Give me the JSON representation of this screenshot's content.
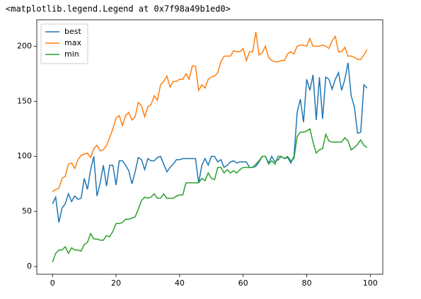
{
  "output_text": "<matplotlib.legend.Legend at 0x7f98a49b1ed0>",
  "chart_data": {
    "type": "line",
    "x": [
      0,
      1,
      2,
      3,
      4,
      5,
      6,
      7,
      8,
      9,
      10,
      11,
      12,
      13,
      14,
      15,
      16,
      17,
      18,
      19,
      20,
      21,
      22,
      23,
      24,
      25,
      26,
      27,
      28,
      29,
      30,
      31,
      32,
      33,
      34,
      35,
      36,
      37,
      38,
      39,
      40,
      41,
      42,
      43,
      44,
      45,
      46,
      47,
      48,
      49,
      50,
      51,
      52,
      53,
      54,
      55,
      56,
      57,
      58,
      59,
      60,
      61,
      62,
      63,
      64,
      65,
      66,
      67,
      68,
      69,
      70,
      71,
      72,
      73,
      74,
      75,
      76,
      77,
      78,
      79,
      80,
      81,
      82,
      83,
      84,
      85,
      86,
      87,
      88,
      89,
      90,
      91,
      92,
      93,
      94,
      95,
      96,
      97,
      98,
      99
    ],
    "series": [
      {
        "name": "best",
        "color": "#1f77b4",
        "values": [
          57,
          63,
          40,
          53,
          57,
          66,
          59,
          64,
          61,
          62,
          80,
          70,
          88,
          100,
          64,
          76,
          92,
          73,
          92,
          92,
          74,
          96,
          96,
          92,
          87,
          75,
          86,
          99,
          97,
          88,
          98,
          96,
          96,
          99,
          100,
          93,
          86,
          90,
          93,
          97,
          97,
          98,
          98,
          98,
          98,
          98,
          76,
          92,
          98,
          92,
          100,
          100,
          95,
          97,
          90,
          92,
          95,
          96,
          94,
          95,
          95,
          95,
          90,
          90,
          91,
          95,
          100,
          100,
          94,
          100,
          95,
          97,
          100,
          98,
          99,
          94,
          100,
          140,
          152,
          131,
          170,
          160,
          174,
          133,
          172,
          134,
          172,
          170,
          161,
          170,
          176,
          160,
          170,
          185,
          155,
          145,
          121,
          122,
          165,
          162
        ]
      },
      {
        "name": "max",
        "color": "#ff7f0e",
        "values": [
          68,
          70,
          71,
          80,
          82,
          93,
          94,
          89,
          97,
          101,
          102,
          103,
          99,
          107,
          110,
          105,
          106,
          110,
          117,
          125,
          135,
          137,
          128,
          137,
          140,
          133,
          136,
          149,
          146,
          136,
          145,
          147,
          155,
          151,
          165,
          168,
          173,
          163,
          168,
          168,
          170,
          170,
          175,
          170,
          182,
          182,
          160,
          165,
          162,
          170,
          172,
          173,
          176,
          186,
          191,
          191,
          191,
          196,
          195,
          195,
          198,
          187,
          195,
          195,
          213,
          192,
          194,
          200,
          190,
          187,
          186,
          186,
          187,
          187,
          193,
          195,
          193,
          200,
          201,
          201,
          200,
          207,
          200,
          200,
          200,
          201,
          200,
          198,
          205,
          209,
          195,
          195,
          199,
          191,
          191,
          190,
          188,
          188,
          192,
          197
        ]
      },
      {
        "name": "min",
        "color": "#2ca02c",
        "values": [
          4,
          12,
          15,
          15,
          18,
          12,
          17,
          15,
          15,
          14,
          20,
          22,
          30,
          25,
          25,
          24,
          24,
          28,
          27,
          32,
          39,
          39,
          40,
          43,
          43,
          44,
          45,
          52,
          60,
          63,
          62,
          63,
          66,
          62,
          62,
          66,
          62,
          62,
          62,
          64,
          65,
          65,
          76,
          76,
          76,
          76,
          76,
          80,
          78,
          85,
          80,
          79,
          90,
          90,
          85,
          88,
          85,
          87,
          85,
          88,
          90,
          90,
          90,
          90,
          93,
          96,
          100,
          100,
          93,
          96,
          93,
          100,
          100,
          98,
          100,
          96,
          98,
          118,
          122,
          122,
          123,
          125,
          113,
          103,
          106,
          107,
          120,
          114,
          113,
          113,
          113,
          113,
          117,
          114,
          106,
          108,
          111,
          115,
          110,
          108
        ]
      }
    ],
    "xlim": [
      -4.95,
      103.95
    ],
    "xticks": [
      0,
      20,
      40,
      60,
      80,
      100
    ],
    "ylim": [
      -7,
      224
    ],
    "yticks": [
      0,
      50,
      100,
      150,
      200
    ],
    "grid": false,
    "legend": "upper left"
  }
}
